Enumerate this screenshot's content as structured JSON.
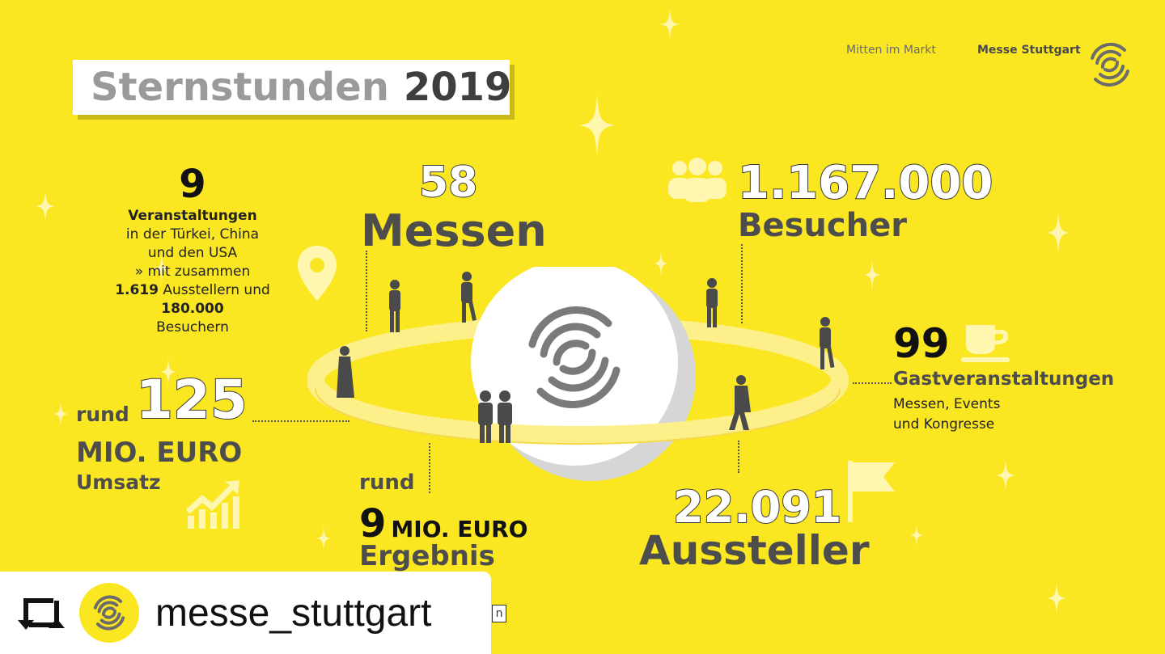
{
  "header": {
    "title_light": "Sternstunden",
    "title_year": "2019",
    "slogan": "Mitten im Markt",
    "brand": "Messe Stuttgart",
    "logo_icon": "spiral-logo-icon"
  },
  "stats": {
    "events": {
      "number": "9",
      "label": "Veranstaltungen",
      "line1": "in der Türkei, China",
      "line2": "und den USA",
      "line3": "» mit zusammen",
      "exhibitors_num": "1.619",
      "exhibitors_text": "Ausstellern und",
      "visitors_num": "180.000",
      "visitors_text": "Besuchern",
      "icon": "location-pin-icon"
    },
    "fairs": {
      "number": "58",
      "label": "Messen"
    },
    "visitors": {
      "number": "1.167.000",
      "label": "Besucher",
      "icon": "people-group-icon"
    },
    "guest_events": {
      "number": "99",
      "label": "Gastveranstaltungen",
      "sub1": "Messen, Events",
      "sub2": "und Kongresse",
      "icon": "coffee-cup-icon"
    },
    "revenue": {
      "prefix": "rund",
      "number": "125",
      "label": "MIO. EURO",
      "sub": "Umsatz",
      "icon": "growth-chart-icon"
    },
    "result": {
      "prefix": "rund",
      "number": "9",
      "label": "MIO. EURO",
      "sub": "Ergebnis"
    },
    "exhibitors": {
      "number": "22.091",
      "label": "Aussteller",
      "icon": "flag-icon"
    }
  },
  "repost": {
    "icon": "repost-icon",
    "handle": "messe_stuttgart",
    "partial_text": "n"
  },
  "colors": {
    "background": "#fbe622",
    "ring": "#fdf08a",
    "planet": "#ffffff",
    "text_gray": "#4d4d4d"
  }
}
